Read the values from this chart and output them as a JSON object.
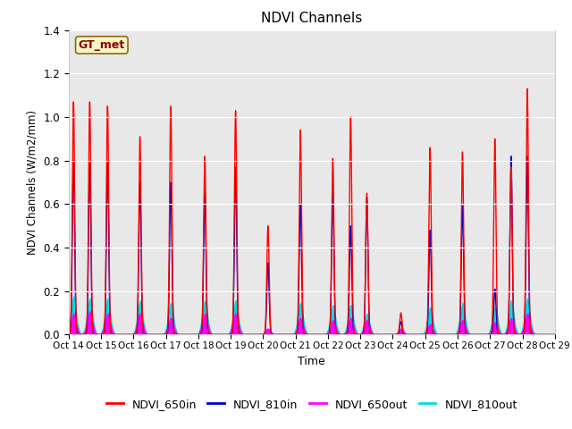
{
  "title": "NDVI Channels",
  "xlabel": "Time",
  "ylabel": "NDVI Channels (W/m2/mm)",
  "xlim_days": [
    14,
    29
  ],
  "ylim": [
    0,
    1.4
  ],
  "yticks": [
    0.0,
    0.2,
    0.4,
    0.6,
    0.8,
    1.0,
    1.2,
    1.4
  ],
  "background_color": "#e8e8e8",
  "gt_met_label": "GT_met",
  "legend_entries": [
    "NDVI_650in",
    "NDVI_810in",
    "NDVI_650out",
    "NDVI_810out"
  ],
  "colors": {
    "NDVI_650in": "#ff0000",
    "NDVI_810in": "#0000cc",
    "NDVI_650out": "#ff00ff",
    "NDVI_810out": "#00dddd"
  },
  "peaks_650in": [
    1.07,
    1.07,
    1.05,
    0.91,
    1.05,
    0.82,
    1.03,
    0.5,
    0.94,
    0.81,
    1.0,
    0.65,
    0.86,
    0.1,
    0.84,
    0.9,
    0.77,
    1.13
  ],
  "peaks_810in": [
    0.8,
    0.79,
    0.79,
    0.7,
    0.7,
    0.66,
    0.77,
    0.33,
    0.6,
    0.65,
    0.5,
    0.63,
    0.48,
    0.06,
    0.59,
    0.21,
    0.82,
    0.82
  ],
  "peaks_650out": [
    0.1,
    0.11,
    0.1,
    0.1,
    0.08,
    0.1,
    0.1,
    0.03,
    0.08,
    0.07,
    0.08,
    0.07,
    0.05,
    0.03,
    0.07,
    0.06,
    0.08,
    0.1
  ],
  "peaks_810out": [
    0.18,
    0.17,
    0.17,
    0.16,
    0.15,
    0.16,
    0.16,
    0.03,
    0.15,
    0.14,
    0.14,
    0.1,
    0.13,
    0.02,
    0.15,
    0.13,
    0.16,
    0.17
  ],
  "peak_positions": [
    14.15,
    14.65,
    15.2,
    16.2,
    17.15,
    18.2,
    19.15,
    20.15,
    21.15,
    22.15,
    22.7,
    23.2,
    25.15,
    24.25,
    26.15,
    27.15,
    27.65,
    28.15
  ],
  "sigma_in": 0.035,
  "sigma_out": 0.09,
  "xtick_labels": [
    "Oct 14",
    "Oct 15",
    "Oct 16",
    "Oct 17",
    "Oct 18",
    "Oct 19",
    "Oct 20",
    "Oct 21",
    "Oct 22",
    "Oct 23",
    "Oct 24",
    "Oct 25",
    "Oct 26",
    "Oct 27",
    "Oct 28",
    "Oct 29"
  ],
  "xtick_positions": [
    14,
    15,
    16,
    17,
    18,
    19,
    20,
    21,
    22,
    23,
    24,
    25,
    26,
    27,
    28,
    29
  ]
}
